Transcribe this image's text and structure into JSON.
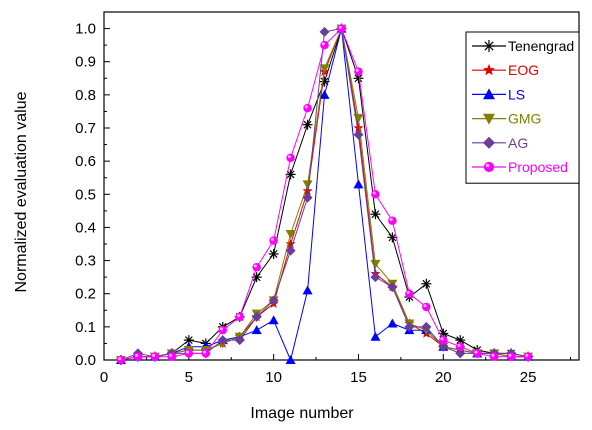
{
  "chart_data": {
    "type": "line",
    "title": "",
    "xlabel": "Image number",
    "ylabel": "Normalized evaluation value",
    "xlim": [
      0,
      28
    ],
    "ylim": [
      0,
      1.05
    ],
    "x_ticks": [
      "0",
      "5",
      "10",
      "15",
      "20",
      "25"
    ],
    "y_ticks": [
      "0.0",
      "0.1",
      "0.2",
      "0.3",
      "0.4",
      "0.5",
      "0.6",
      "0.7",
      "0.8",
      "0.9",
      "1.0"
    ],
    "grid": false,
    "legend_position": "top-right",
    "x": [
      1,
      2,
      3,
      4,
      5,
      6,
      7,
      8,
      9,
      10,
      11,
      12,
      13,
      14,
      15,
      16,
      17,
      18,
      19,
      20,
      21,
      22,
      23,
      24,
      25
    ],
    "series": [
      {
        "name": "Tenengrad",
        "color": "#000000",
        "marker": "asterisk",
        "values": [
          0.0,
          0.01,
          0.01,
          0.02,
          0.06,
          0.05,
          0.1,
          0.13,
          0.25,
          0.32,
          0.56,
          0.71,
          0.84,
          1.0,
          0.85,
          0.44,
          0.37,
          0.19,
          0.23,
          0.08,
          0.06,
          0.03,
          0.02,
          0.02,
          0.01
        ]
      },
      {
        "name": "EOG",
        "color": "#e00000",
        "marker": "star",
        "values": [
          0.0,
          0.01,
          0.01,
          0.02,
          0.03,
          0.03,
          0.05,
          0.07,
          0.13,
          0.17,
          0.35,
          0.51,
          0.87,
          1.0,
          0.7,
          0.26,
          0.22,
          0.11,
          0.08,
          0.04,
          0.03,
          0.02,
          0.02,
          0.01,
          0.01
        ]
      },
      {
        "name": "LS",
        "color": "#0000ff",
        "marker": "triangle-up",
        "values": [
          0.0,
          0.01,
          0.01,
          0.02,
          0.04,
          0.04,
          0.06,
          0.07,
          0.09,
          0.12,
          0.0,
          0.21,
          0.8,
          1.0,
          0.53,
          0.07,
          0.11,
          0.09,
          0.09,
          0.04,
          0.03,
          0.02,
          0.02,
          0.01,
          0.01
        ]
      },
      {
        "name": "GMG",
        "color": "#808000",
        "marker": "triangle-down",
        "values": [
          0.0,
          0.01,
          0.01,
          0.02,
          0.03,
          0.03,
          0.05,
          0.07,
          0.14,
          0.18,
          0.38,
          0.53,
          0.88,
          1.0,
          0.73,
          0.29,
          0.23,
          0.11,
          0.09,
          0.04,
          0.03,
          0.02,
          0.02,
          0.01,
          0.01
        ]
      },
      {
        "name": "AG",
        "color": "#6a3d9a",
        "marker": "diamond",
        "values": [
          0.0,
          0.02,
          0.01,
          0.02,
          0.02,
          0.02,
          0.06,
          0.06,
          0.13,
          0.18,
          0.33,
          0.49,
          0.99,
          1.0,
          0.68,
          0.25,
          0.22,
          0.1,
          0.1,
          0.04,
          0.02,
          0.02,
          0.02,
          0.02,
          0.01
        ]
      },
      {
        "name": "Proposed",
        "color": "#ff00ff",
        "marker": "circle",
        "values": [
          0.0,
          0.01,
          0.01,
          0.01,
          0.02,
          0.02,
          0.09,
          0.13,
          0.28,
          0.36,
          0.61,
          0.76,
          0.95,
          1.0,
          0.87,
          0.5,
          0.42,
          0.2,
          0.16,
          0.06,
          0.04,
          0.02,
          0.01,
          0.01,
          0.01
        ]
      }
    ]
  }
}
